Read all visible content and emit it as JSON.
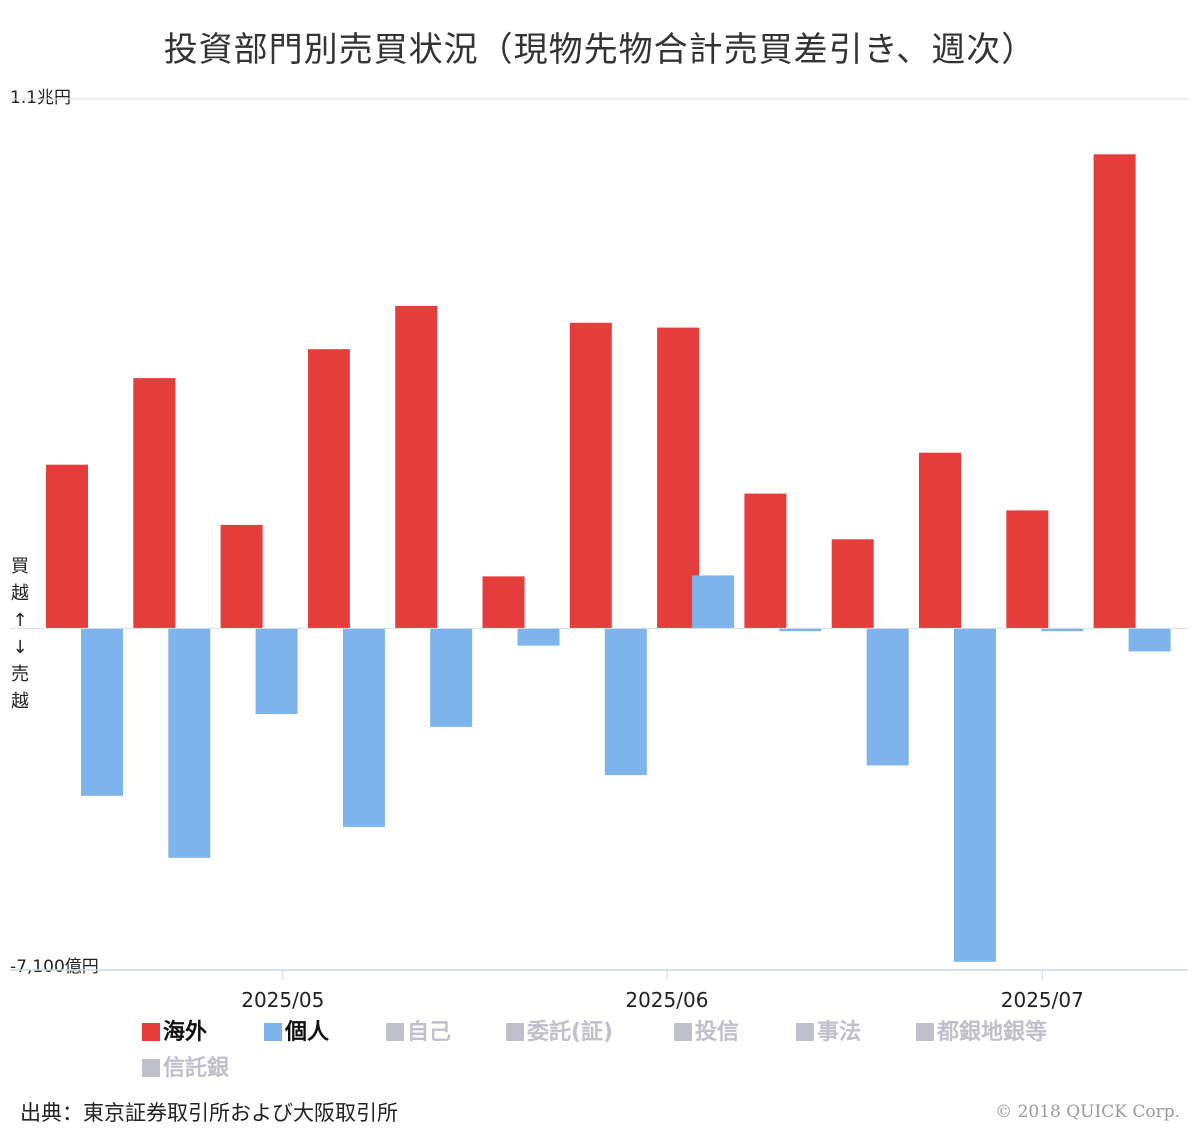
{
  "title": "投資部門別売買状況（現物先物合計売買差引き、週次）",
  "side_label": {
    "top": [
      "買",
      "越"
    ],
    "arrow_up": "↑",
    "arrow_down": "↓",
    "bottom": [
      "売",
      "越"
    ]
  },
  "source": "出典：東京証券取引所および大阪取引所",
  "copyright": "© 2018 QUICK Corp.",
  "colors": {
    "overseas": "#e53c3c",
    "individual": "#7db4ec",
    "inactive": "#c0c0cc",
    "grid": "#d8dbe4",
    "axis": "#ccd6eb"
  },
  "legend": [
    {
      "label": "海外",
      "color": "#e53c3c",
      "active": true
    },
    {
      "label": "個人",
      "color": "#7db4ec",
      "active": true
    },
    {
      "label": "自己",
      "color": "#c0c0cc",
      "active": false
    },
    {
      "label": "委託(証)",
      "color": "#c0c0cc",
      "active": false
    },
    {
      "label": "投信",
      "color": "#c0c0cc",
      "active": false
    },
    {
      "label": "事法",
      "color": "#c0c0cc",
      "active": false
    },
    {
      "label": "都銀地銀等",
      "color": "#c0c0cc",
      "active": false
    },
    {
      "label": "信託銀",
      "color": "#c0c0cc",
      "active": false
    }
  ],
  "chart_data": {
    "type": "bar",
    "unit": "億円",
    "ylim": [
      -7100,
      11000
    ],
    "ytick_labels": {
      "max": "1.1兆円",
      "min": "-7,100億円"
    },
    "x_labels": [
      {
        "label": "2025/05",
        "week_position": 2.3
      },
      {
        "label": "2025/06",
        "week_position": 6.7
      },
      {
        "label": "2025/07",
        "week_position": 11.0
      }
    ],
    "week_count": 13,
    "series": [
      {
        "name": "海外",
        "values": [
          3400,
          5200,
          2150,
          5800,
          6700,
          1080,
          6350,
          6250,
          2800,
          1850,
          3650,
          2450,
          9850
        ]
      },
      {
        "name": "個人",
        "values": [
          -3480,
          -4770,
          -1780,
          -4130,
          -2050,
          -360,
          -3050,
          1100,
          -60,
          -2850,
          -6930,
          -60,
          -480
        ]
      }
    ]
  }
}
